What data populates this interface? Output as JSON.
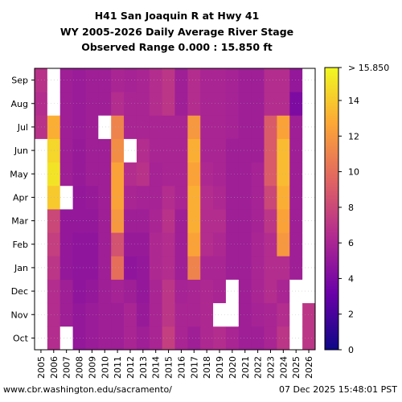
{
  "title_lines": [
    "H41 San Joaquin R at Hwy 41",
    "WY 2005-2026 Daily Average River Stage",
    "Observed Range 0.000 : 15.850 ft"
  ],
  "footer": {
    "left": "www.cbr.washington.edu/sacramento/",
    "right": "07 Dec 2025 15:48:01 PST"
  },
  "colors": {
    "missing": "#ffffff",
    "colormap": [
      "#0d0887",
      "#6a00a8",
      "#b12a90",
      "#e16462",
      "#fca636",
      "#f0f921"
    ]
  },
  "chart_data": {
    "type": "heatmap",
    "title": "H41 San Joaquin R at Hwy 41 — WY 2005-2026 Daily Average River Stage",
    "x_categories": [
      "2005",
      "2006",
      "2007",
      "2008",
      "2009",
      "2010",
      "2011",
      "2012",
      "2013",
      "2014",
      "2015",
      "2016",
      "2017",
      "2018",
      "2019",
      "2020",
      "2021",
      "2022",
      "2023",
      "2024",
      "2025",
      "2026"
    ],
    "y_categories": [
      "Oct",
      "Nov",
      "Dec",
      "Jan",
      "Feb",
      "Mar",
      "Apr",
      "May",
      "Jun",
      "Jul",
      "Aug",
      "Sep"
    ],
    "colorbar": {
      "min": 0,
      "max": 15.85,
      "ticks": [
        "0",
        "2",
        "4",
        "6",
        "8",
        "10",
        "12",
        "14"
      ],
      "top_label": "> 15.850"
    },
    "values": [
      [
        null,
        null,
        null,
        null,
        null,
        null,
        null,
        null,
        null,
        6.8,
        6.5,
        6.8
      ],
      [
        6.5,
        6.5,
        6.5,
        7.0,
        7.5,
        8.0,
        14.0,
        15.0,
        14.5,
        13.0,
        null,
        null
      ],
      [
        null,
        5.5,
        5.5,
        5.0,
        5.0,
        5.0,
        null,
        5.5,
        5.5,
        5.5,
        5.5,
        5.5
      ],
      [
        5.0,
        5.0,
        4.8,
        4.8,
        4.8,
        5.0,
        5.0,
        5.2,
        5.2,
        5.3,
        5.3,
        5.3
      ],
      [
        5.3,
        5.3,
        5.0,
        4.8,
        4.8,
        5.0,
        5.2,
        5.5,
        5.5,
        5.5,
        5.5,
        5.5
      ],
      [
        5.5,
        5.5,
        5.5,
        5.5,
        5.5,
        5.5,
        5.5,
        5.5,
        5.5,
        null,
        5.5,
        5.5
      ],
      [
        5.5,
        5.5,
        5.8,
        10.0,
        8.5,
        12.0,
        12.5,
        12.5,
        11.5,
        11.0,
        6.5,
        6.0
      ],
      [
        6.0,
        6.0,
        5.5,
        4.8,
        5.2,
        5.5,
        6.0,
        6.5,
        null,
        6.0,
        6.0,
        5.8
      ],
      [
        5.5,
        5.2,
        5.0,
        5.0,
        5.2,
        5.5,
        5.8,
        6.8,
        6.5,
        6.0,
        6.0,
        6.0
      ],
      [
        6.0,
        6.0,
        6.0,
        6.2,
        6.2,
        6.0,
        5.8,
        5.8,
        6.0,
        6.0,
        6.5,
        6.5
      ],
      [
        7.5,
        7.0,
        7.0,
        6.5,
        6.5,
        6.8,
        6.5,
        6.0,
        6.0,
        6.0,
        7.0,
        7.0
      ],
      [
        6.0,
        6.0,
        5.8,
        5.5,
        5.5,
        5.5,
        6.0,
        6.0,
        6.0,
        6.0,
        5.5,
        5.5
      ],
      [
        5.5,
        6.0,
        6.0,
        11.0,
        12.5,
        13.0,
        13.0,
        12.5,
        13.0,
        12.0,
        6.5,
        6.5
      ],
      [
        6.2,
        6.2,
        6.2,
        6.0,
        6.5,
        6.5,
        6.5,
        6.2,
        6.0,
        6.0,
        6.0,
        6.0
      ],
      [
        6.5,
        null,
        6.0,
        6.0,
        6.2,
        6.5,
        6.2,
        6.0,
        6.0,
        6.0,
        6.0,
        6.0
      ],
      [
        6.0,
        null,
        null,
        5.5,
        5.5,
        5.5,
        5.5,
        5.5,
        5.5,
        5.8,
        5.8,
        5.8
      ],
      [
        5.5,
        5.5,
        5.5,
        5.5,
        5.5,
        5.5,
        5.5,
        5.5,
        5.5,
        5.5,
        5.5,
        5.5
      ],
      [
        5.5,
        5.8,
        6.0,
        6.0,
        6.0,
        5.8,
        5.8,
        5.8,
        5.5,
        5.5,
        5.5,
        5.5
      ],
      [
        6.0,
        6.0,
        6.5,
        6.5,
        6.5,
        7.0,
        8.0,
        9.0,
        9.0,
        9.0,
        6.5,
        6.5
      ],
      [
        7.0,
        6.5,
        6.0,
        6.5,
        12.0,
        12.5,
        13.0,
        13.5,
        13.5,
        12.5,
        6.5,
        6.5
      ],
      [
        null,
        null,
        null,
        5.5,
        5.5,
        5.5,
        5.5,
        5.5,
        5.5,
        5.5,
        4.0,
        5.0
      ],
      [
        7.0,
        7.0,
        null,
        null,
        null,
        null,
        null,
        null,
        null,
        null,
        null,
        null
      ]
    ]
  }
}
